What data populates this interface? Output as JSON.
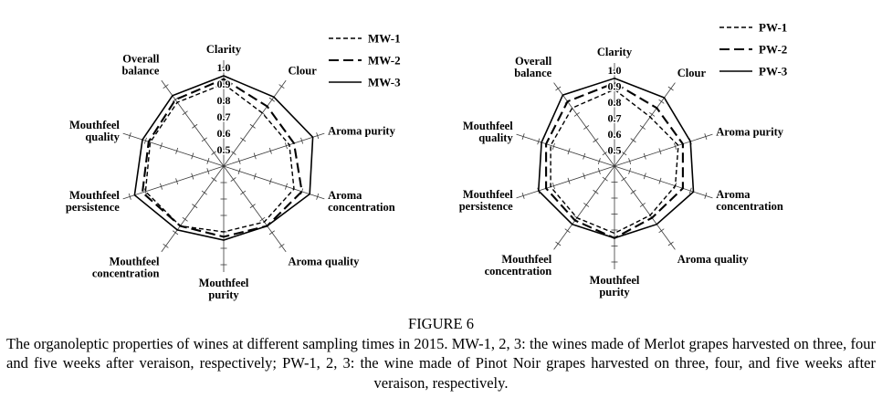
{
  "figure": {
    "label": "FIGURE 6",
    "caption": "The organoleptic properties of wines at different sampling times in 2015. MW-1, 2, 3: the wines made of Merlot grapes harvested on three, four and five weeks after veraison, respectively; PW-1, 2, 3: the wine made of Pinot Noir grapes harvested on three, four, and five weeks after veraison, respectively."
  },
  "chart_data": [
    {
      "type": "radar",
      "title": "",
      "categories": [
        "Clarity",
        "Clour",
        "Aroma purity",
        "Aroma concentration",
        "Aroma quality",
        "Mouthfeel purity",
        "Mouthfeel concentration",
        "Mouthfeel persistence",
        "Mouthfeel quality",
        "Overall balance"
      ],
      "r_ticks": [
        0.5,
        0.6,
        0.7,
        0.8,
        0.9,
        1.0
      ],
      "rlim": [
        0.4,
        1.0
      ],
      "grid": "tick-marks-on-spokes",
      "legend_position": "top-right",
      "line_color": "#000000",
      "series": [
        {
          "name": "MW-1",
          "line_style": "short-dash",
          "values": [
            0.9,
            0.8,
            0.82,
            0.85,
            0.82,
            0.8,
            0.85,
            0.9,
            0.87,
            0.88
          ]
        },
        {
          "name": "MW-2",
          "line_style": "long-dash",
          "values": [
            0.93,
            0.85,
            0.85,
            0.9,
            0.85,
            0.83,
            0.85,
            0.92,
            0.88,
            0.9
          ]
        },
        {
          "name": "MW-3",
          "line_style": "solid",
          "values": [
            0.95,
            0.92,
            0.97,
            0.95,
            0.85,
            0.85,
            0.88,
            0.97,
            0.92,
            0.93
          ]
        }
      ]
    },
    {
      "type": "radar",
      "title": "",
      "categories": [
        "Clarity",
        "Clour",
        "Aroma purity",
        "Aroma concentration",
        "Aroma quality",
        "Mouthfeel purity",
        "Mouthfeel concentration",
        "Mouthfeel persistence",
        "Mouthfeel quality",
        "Overall balance"
      ],
      "r_ticks": [
        0.5,
        0.6,
        0.7,
        0.8,
        0.9,
        1.0
      ],
      "rlim": [
        0.4,
        1.0
      ],
      "grid": "tick-marks-on-spokes",
      "legend_position": "top-right",
      "line_color": "#000000",
      "series": [
        {
          "name": "PW-1",
          "line_style": "short-dash",
          "values": [
            0.88,
            0.78,
            0.82,
            0.8,
            0.78,
            0.82,
            0.8,
            0.82,
            0.82,
            0.85
          ]
        },
        {
          "name": "PW-2",
          "line_style": "long-dash",
          "values": [
            0.92,
            0.85,
            0.85,
            0.85,
            0.8,
            0.85,
            0.82,
            0.85,
            0.85,
            0.9
          ]
        },
        {
          "name": "PW-3",
          "line_style": "solid",
          "values": [
            0.95,
            0.93,
            0.9,
            0.92,
            0.85,
            0.85,
            0.85,
            0.9,
            0.88,
            0.95
          ]
        }
      ]
    }
  ]
}
